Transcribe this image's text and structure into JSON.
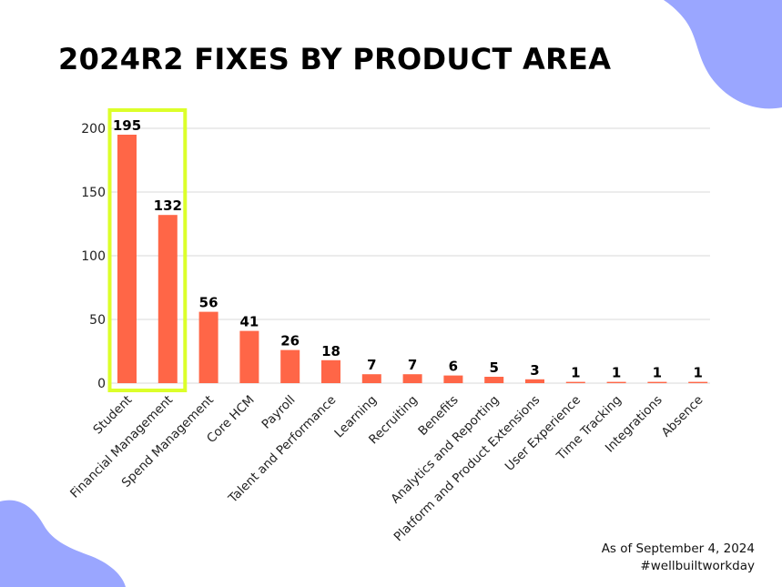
{
  "title": "2024R2 FIXES BY PRODUCT AREA",
  "footer": {
    "date": "As of September 4, 2024",
    "hashtag": "#wellbuiltworkday"
  },
  "colors": {
    "bar": "#ff6647",
    "highlight": "#dcff2a",
    "blob": "#9aa6ff",
    "grid": "#d9d9d9"
  },
  "chart_data": {
    "type": "bar",
    "title": "2024R2 FIXES BY PRODUCT AREA",
    "categories": [
      "Student",
      "Financial Management",
      "Spend Management",
      "Core HCM",
      "Payroll",
      "Talent and Performance",
      "Learning",
      "Recruiting",
      "Benefits",
      "Analytics and Reporting",
      "Platform and Product Extensions",
      "User Experience",
      "Time Tracking",
      "Integrations",
      "Absence"
    ],
    "values": [
      195,
      132,
      56,
      41,
      26,
      18,
      7,
      7,
      6,
      5,
      3,
      1,
      1,
      1,
      1
    ],
    "yticks": [
      0,
      50,
      100,
      150,
      200
    ],
    "ylim": [
      0,
      200
    ],
    "grid": true,
    "highlighted_categories": [
      "Student",
      "Financial Management"
    ],
    "xlabel": "",
    "ylabel": ""
  }
}
